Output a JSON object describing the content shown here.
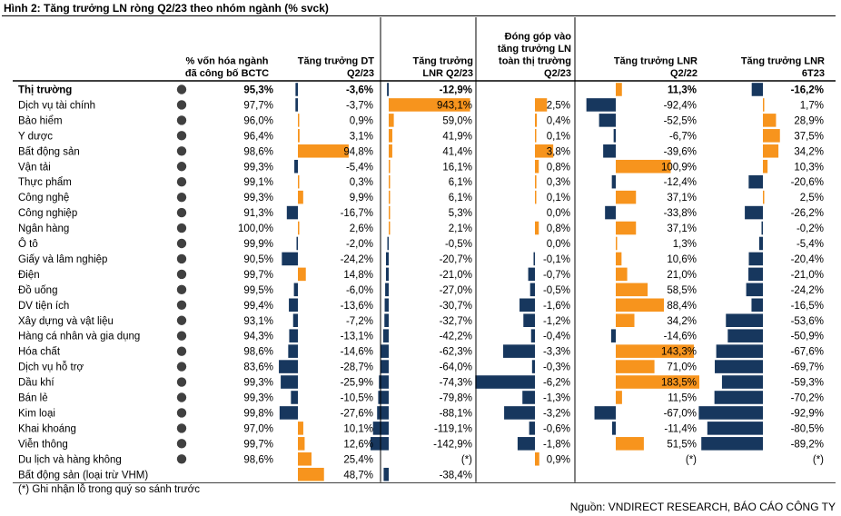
{
  "figure_title": "Hình 2: Tăng trưởng LN ròng Q2/23 theo nhóm ngành (% svck)",
  "footnote": "(*) Ghi nhận lỗ trong quý so sánh trước",
  "source": "Nguồn: VNDIRECT RESEARCH, BÁO CÁO CÔNG TY",
  "colors": {
    "positive": "#F7941D",
    "negative": "#17375E",
    "dot": "#404040",
    "divider": "#000000"
  },
  "chart_data": {
    "type": "table",
    "title": "Hình 2: Tăng trưởng LN ròng Q2/23 theo nhóm ngành (% svck)",
    "columns": [
      {
        "key": "cap",
        "header": [
          "% vốn hóa ngành",
          "đã công bố BCTC"
        ]
      },
      {
        "key": "rev",
        "header": [
          "Tăng trưởng DT",
          "Q2/23"
        ]
      },
      {
        "key": "np",
        "header": [
          "Tăng trưởng",
          "LNR Q2/23"
        ]
      },
      {
        "key": "contrib",
        "header": [
          "Đóng góp vào",
          "tăng trưởng LN",
          "toàn thị trường",
          "Q2/23"
        ]
      },
      {
        "key": "q222",
        "header": [
          "Tăng trưởng LNR",
          "Q2/22"
        ]
      },
      {
        "key": "h123",
        "header": [
          "Tăng trưởng LNR",
          "6T23"
        ]
      }
    ],
    "rows": [
      {
        "name": "Thị trường",
        "bold": true,
        "cap": "95,3%",
        "rev": "-3,6%",
        "rev_v": -3.6,
        "np": "-12,9%",
        "np_v": -12.9,
        "contrib": "",
        "contrib_v": null,
        "q222": "11,3%",
        "q222_v": 11.3,
        "h123": "-16,2%",
        "h123_v": -16.2
      },
      {
        "name": "Dịch vụ tài chính",
        "cap": "97,7%",
        "rev": "-3,7%",
        "rev_v": -3.7,
        "np": "943,1%",
        "np_v": 943.1,
        "contrib": "2,5%",
        "contrib_v": 2.5,
        "q222": "-92,4%",
        "q222_v": -92.4,
        "h123": "1,7%",
        "h123_v": 1.7
      },
      {
        "name": "Bảo hiểm",
        "cap": "96,0%",
        "rev": "0,9%",
        "rev_v": 0.9,
        "np": "59,0%",
        "np_v": 59.0,
        "contrib": "0,4%",
        "contrib_v": 0.4,
        "q222": "-52,5%",
        "q222_v": -52.5,
        "h123": "28,9%",
        "h123_v": 28.9
      },
      {
        "name": "Y dược",
        "cap": "96,4%",
        "rev": "3,1%",
        "rev_v": 3.1,
        "np": "41,9%",
        "np_v": 41.9,
        "contrib": "0,1%",
        "contrib_v": 0.1,
        "q222": "-6,7%",
        "q222_v": -6.7,
        "h123": "37,5%",
        "h123_v": 37.5
      },
      {
        "name": "Bất động sản",
        "cap": "98,6%",
        "rev": "94,8%",
        "rev_v": 94.8,
        "np": "41,4%",
        "np_v": 41.4,
        "contrib": "3,8%",
        "contrib_v": 3.8,
        "q222": "-39,6%",
        "q222_v": -39.6,
        "h123": "34,2%",
        "h123_v": 34.2
      },
      {
        "name": "Vận tải",
        "cap": "99,3%",
        "rev": "-5,4%",
        "rev_v": -5.4,
        "np": "16,1%",
        "np_v": 16.1,
        "contrib": "0,8%",
        "contrib_v": 0.8,
        "q222": "100,9%",
        "q222_v": 100.9,
        "h123": "10,3%",
        "h123_v": 10.3
      },
      {
        "name": "Thực phẩm",
        "cap": "99,1%",
        "rev": "0,3%",
        "rev_v": 0.3,
        "np": "6,1%",
        "np_v": 6.1,
        "contrib": "0,3%",
        "contrib_v": 0.3,
        "q222": "-12,4%",
        "q222_v": -12.4,
        "h123": "-20,6%",
        "h123_v": -20.6
      },
      {
        "name": "Công nghệ",
        "cap": "99,3%",
        "rev": "9,9%",
        "rev_v": 9.9,
        "np": "6,1%",
        "np_v": 6.1,
        "contrib": "0,1%",
        "contrib_v": 0.1,
        "q222": "37,1%",
        "q222_v": 37.1,
        "h123": "2,5%",
        "h123_v": 2.5
      },
      {
        "name": "Công nghiệp",
        "cap": "91,3%",
        "rev": "-16,7%",
        "rev_v": -16.7,
        "np": "5,3%",
        "np_v": 5.3,
        "contrib": "0,0%",
        "contrib_v": 0.0,
        "q222": "-33,8%",
        "q222_v": -33.8,
        "h123": "-26,2%",
        "h123_v": -26.2
      },
      {
        "name": "Ngân hàng",
        "cap": "100,0%",
        "rev": "2,6%",
        "rev_v": 2.6,
        "np": "2,1%",
        "np_v": 2.1,
        "contrib": "0,8%",
        "contrib_v": 0.8,
        "q222": "37,1%",
        "q222_v": 37.1,
        "h123": "-0,2%",
        "h123_v": -0.2
      },
      {
        "name": "Ô tô",
        "cap": "99,9%",
        "rev": "-2,0%",
        "rev_v": -2.0,
        "np": "-0,5%",
        "np_v": -0.5,
        "contrib": "0,0%",
        "contrib_v": 0.0,
        "q222": "1,3%",
        "q222_v": 1.3,
        "h123": "-5,4%",
        "h123_v": -5.4
      },
      {
        "name": "Giấy và lâm nghiệp",
        "cap": "90,5%",
        "rev": "-24,2%",
        "rev_v": -24.2,
        "np": "-20,7%",
        "np_v": -20.7,
        "contrib": "-0,1%",
        "contrib_v": -0.1,
        "q222": "10,6%",
        "q222_v": 10.6,
        "h123": "-20,4%",
        "h123_v": -20.4
      },
      {
        "name": "Điện",
        "cap": "99,7%",
        "rev": "14,8%",
        "rev_v": 14.8,
        "np": "-21,0%",
        "np_v": -21.0,
        "contrib": "-0,7%",
        "contrib_v": -0.7,
        "q222": "21,0%",
        "q222_v": 21.0,
        "h123": "-21,0%",
        "h123_v": -21.0
      },
      {
        "name": "Đồ uống",
        "cap": "99,5%",
        "rev": "-6,0%",
        "rev_v": -6.0,
        "np": "-27,0%",
        "np_v": -27.0,
        "contrib": "-0,5%",
        "contrib_v": -0.5,
        "q222": "58,5%",
        "q222_v": 58.5,
        "h123": "-24,2%",
        "h123_v": -24.2
      },
      {
        "name": "DV tiện ích",
        "cap": "99,4%",
        "rev": "-13,6%",
        "rev_v": -13.6,
        "np": "-30,7%",
        "np_v": -30.7,
        "contrib": "-1,6%",
        "contrib_v": -1.6,
        "q222": "88,4%",
        "q222_v": 88.4,
        "h123": "-16,5%",
        "h123_v": -16.5
      },
      {
        "name": "Xây dựng và vật liệu",
        "cap": "93,1%",
        "rev": "-7,2%",
        "rev_v": -7.2,
        "np": "-32,7%",
        "np_v": -32.7,
        "contrib": "-1,2%",
        "contrib_v": -1.2,
        "q222": "34,2%",
        "q222_v": 34.2,
        "h123": "-53,6%",
        "h123_v": -53.6
      },
      {
        "name": "Hàng cá nhân và gia dụng",
        "cap": "94,3%",
        "rev": "-13,1%",
        "rev_v": -13.1,
        "np": "-42,2%",
        "np_v": -42.2,
        "contrib": "-0,4%",
        "contrib_v": -0.4,
        "q222": "-14,6%",
        "q222_v": -14.6,
        "h123": "-50,9%",
        "h123_v": -50.9
      },
      {
        "name": "Hóa chất",
        "cap": "98,6%",
        "rev": "-14,6%",
        "rev_v": -14.6,
        "np": "-62,3%",
        "np_v": -62.3,
        "contrib": "-3,3%",
        "contrib_v": -3.3,
        "q222": "143,3%",
        "q222_v": 143.3,
        "h123": "-67,6%",
        "h123_v": -67.6
      },
      {
        "name": "Dịch vụ hỗ trợ",
        "cap": "83,6%",
        "rev": "-28,7%",
        "rev_v": -28.7,
        "np": "-64,0%",
        "np_v": -64.0,
        "contrib": "-0,3%",
        "contrib_v": -0.3,
        "q222": "71,0%",
        "q222_v": 71.0,
        "h123": "-69,7%",
        "h123_v": -69.7
      },
      {
        "name": "Dầu khí",
        "cap": "99,3%",
        "rev": "-25,9%",
        "rev_v": -25.9,
        "np": "-74,3%",
        "np_v": -74.3,
        "contrib": "-6,2%",
        "contrib_v": -6.2,
        "q222": "183,5%",
        "q222_v": 183.5,
        "h123": "-59,3%",
        "h123_v": -59.3
      },
      {
        "name": "Bán lẻ",
        "cap": "99,3%",
        "rev": "-10,5%",
        "rev_v": -10.5,
        "np": "-79,8%",
        "np_v": -79.8,
        "contrib": "-1,3%",
        "contrib_v": -1.3,
        "q222": "11,5%",
        "q222_v": 11.5,
        "h123": "-70,2%",
        "h123_v": -70.2
      },
      {
        "name": "Kim loại",
        "cap": "99,8%",
        "rev": "-27,6%",
        "rev_v": -27.6,
        "np": "-88,1%",
        "np_v": -88.1,
        "contrib": "-3,2%",
        "contrib_v": -3.2,
        "q222": "-67,0%",
        "q222_v": -67.0,
        "h123": "-92,9%",
        "h123_v": -92.9
      },
      {
        "name": "Khai khoáng",
        "cap": "97,0%",
        "rev": "10,1%",
        "rev_v": 10.1,
        "np": "-119,1%",
        "np_v": -119.1,
        "contrib": "-0,6%",
        "contrib_v": -0.6,
        "q222": "-11,4%",
        "q222_v": -11.4,
        "h123": "-80,5%",
        "h123_v": -80.5
      },
      {
        "name": "Viễn thông",
        "cap": "99,7%",
        "rev": "12,6%",
        "rev_v": 12.6,
        "np": "-142,9%",
        "np_v": -142.9,
        "contrib": "-1,8%",
        "contrib_v": -1.8,
        "q222": "51,5%",
        "q222_v": 51.5,
        "h123": "-89,2%",
        "h123_v": -89.2
      },
      {
        "name": "Du lịch và hàng không",
        "cap": "98,6%",
        "rev": "25,4%",
        "rev_v": 25.4,
        "np": "(*)",
        "np_v": null,
        "contrib": "0,9%",
        "contrib_v": 0.9,
        "q222": "(*)",
        "q222_v": null,
        "h123": "(*)",
        "h123_v": null
      },
      {
        "name": "Bất động sản (loại trừ VHM)",
        "cap": "",
        "rev": "48,7%",
        "rev_v": 48.7,
        "np": "-38,4%",
        "np_v": -38.4,
        "contrib": "",
        "contrib_v": null,
        "q222": "",
        "q222_v": null,
        "h123": "",
        "h123_v": null
      }
    ]
  }
}
